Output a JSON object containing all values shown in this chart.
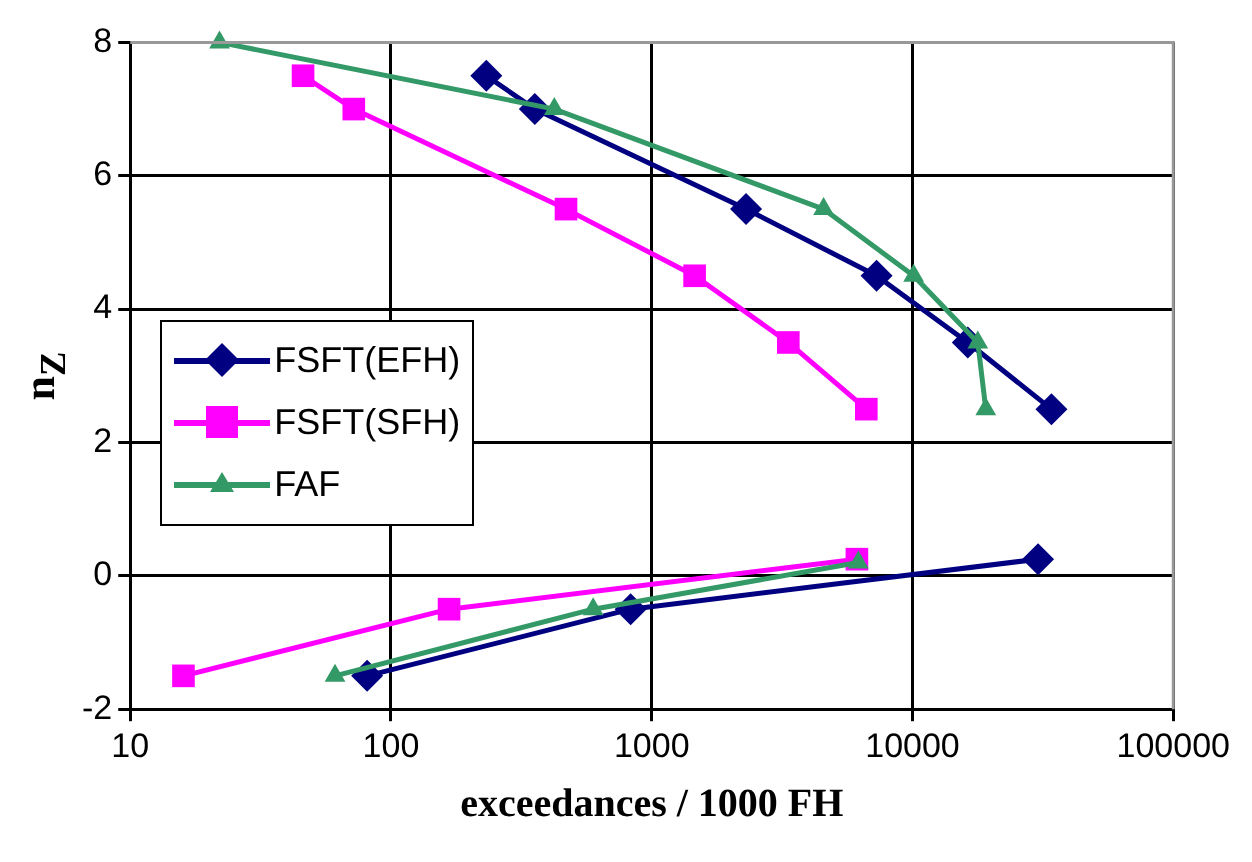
{
  "chart_data": {
    "type": "line",
    "xlabel": "exceedances / 1000 FH",
    "ylabel": "n$_{Z}$",
    "log": "x",
    "xlim": [
      10,
      100000
    ],
    "xticks": [
      10,
      100,
      1000,
      10000,
      100000
    ],
    "ylim": [
      -2,
      8
    ],
    "yticks": [
      -2,
      0,
      2,
      4,
      6,
      8
    ],
    "grid": true,
    "legend": "left",
    "line_style": "solid",
    "series": [
      {
        "name": "FSFT(EFH)",
        "color": "#000080",
        "marker": "diamond",
        "x": [
          232,
          356,
          2300,
          7280,
          16300,
          34100,
          null,
          81,
          830,
          30300
        ],
        "values": [
          7.5,
          7.0,
          5.5,
          4.5,
          3.5,
          2.5,
          null,
          -1.5,
          -0.5,
          0.25
        ]
      },
      {
        "name": "FSFT(SFH)",
        "color": "#ff00ff",
        "marker": "square",
        "x": [
          46,
          72,
          469,
          1460,
          3340,
          6650,
          null,
          16,
          167,
          6120
        ],
        "values": [
          7.5,
          7.0,
          5.5,
          4.5,
          3.5,
          2.5,
          null,
          -1.5,
          -0.5,
          0.25
        ]
      },
      {
        "name": "FAF",
        "color": "#339966",
        "marker": "triangle",
        "x": [
          22,
          423,
          4560,
          10100,
          17800,
          19100,
          null,
          61,
          596,
          6200
        ],
        "values": [
          8,
          7,
          5.5,
          4.5,
          3.5,
          2.5,
          null,
          -1.5,
          -0.5,
          0.2
        ]
      }
    ]
  }
}
